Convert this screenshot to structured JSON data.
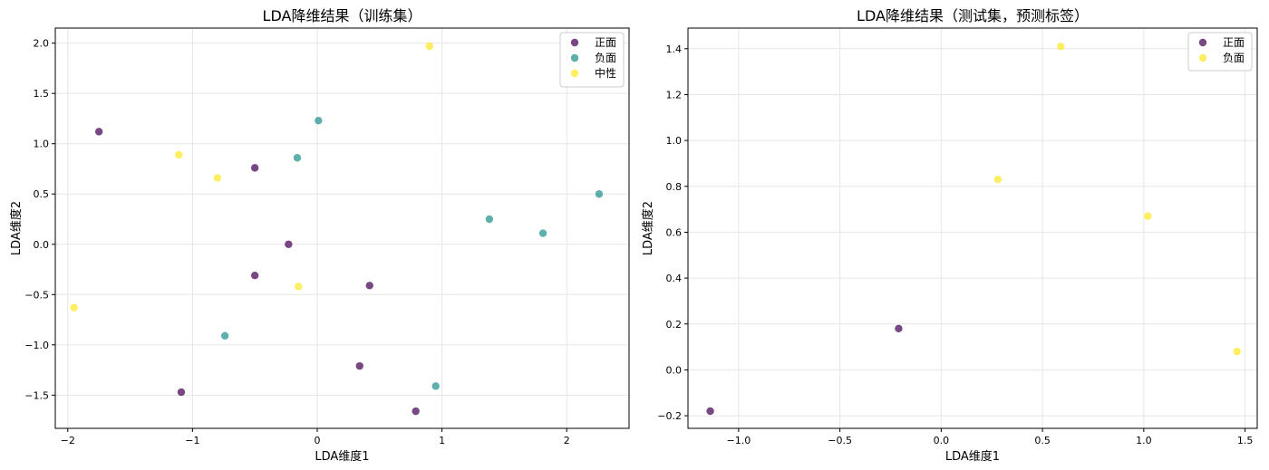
{
  "chart_data": [
    {
      "type": "scatter",
      "title": "LDA降维结果（训练集）",
      "xlabel": "LDA维度1",
      "ylabel": "LDA维度2",
      "xlim": [
        -2.1,
        2.5
      ],
      "ylim": [
        -1.83,
        2.15
      ],
      "xticks": [
        -2,
        -1,
        0,
        1,
        2
      ],
      "xtick_labels": [
        "−2",
        "−1",
        "0",
        "1",
        "2"
      ],
      "yticks": [
        -1.5,
        -1.0,
        -0.5,
        0.0,
        0.5,
        1.0,
        1.5,
        2.0
      ],
      "ytick_labels": [
        "−1.5",
        "−1.0",
        "−0.5",
        "0.0",
        "0.5",
        "1.0",
        "1.5",
        "2.0"
      ],
      "grid": true,
      "legend_position": "top-right",
      "series": [
        {
          "name": "正面",
          "color": "#440154",
          "points": [
            [
              -1.75,
              1.12
            ],
            [
              -0.5,
              0.76
            ],
            [
              -0.23,
              0.0
            ],
            [
              -0.5,
              -0.31
            ],
            [
              0.42,
              -0.41
            ],
            [
              0.34,
              -1.21
            ],
            [
              -1.09,
              -1.47
            ],
            [
              0.79,
              -1.66
            ]
          ]
        },
        {
          "name": "负面",
          "color": "#21918c",
          "points": [
            [
              0.01,
              1.23
            ],
            [
              -0.16,
              0.86
            ],
            [
              2.26,
              0.5
            ],
            [
              1.38,
              0.25
            ],
            [
              1.81,
              0.11
            ],
            [
              -0.74,
              -0.91
            ],
            [
              0.95,
              -1.41
            ]
          ]
        },
        {
          "name": "中性",
          "color": "#fde725",
          "points": [
            [
              0.9,
              1.97
            ],
            [
              -1.11,
              0.89
            ],
            [
              -0.8,
              0.66
            ],
            [
              -0.15,
              -0.42
            ],
            [
              -1.95,
              -0.63
            ]
          ]
        }
      ]
    },
    {
      "type": "scatter",
      "title": "LDA降维结果（测试集，预测标签）",
      "xlabel": "LDA维度1",
      "ylabel": "LDA维度2",
      "xlim": [
        -1.25,
        1.56
      ],
      "ylim": [
        -0.255,
        1.49
      ],
      "xticks": [
        -1.0,
        -0.5,
        0.0,
        0.5,
        1.0,
        1.5
      ],
      "xtick_labels": [
        "−1.0",
        "−0.5",
        "0.0",
        "0.5",
        "1.0",
        "1.5"
      ],
      "yticks": [
        -0.2,
        0.0,
        0.2,
        0.4,
        0.6,
        0.8,
        1.0,
        1.2,
        1.4
      ],
      "ytick_labels": [
        "−0.2",
        "0.0",
        "0.2",
        "0.4",
        "0.6",
        "0.8",
        "1.0",
        "1.2",
        "1.4"
      ],
      "grid": true,
      "legend_position": "top-right",
      "series": [
        {
          "name": "正面",
          "color": "#440154",
          "points": [
            [
              -1.14,
              -0.18
            ],
            [
              -0.21,
              0.18
            ]
          ]
        },
        {
          "name": "负面",
          "color": "#fde725",
          "points": [
            [
              0.59,
              1.41
            ],
            [
              0.28,
              0.83
            ],
            [
              1.02,
              0.67
            ],
            [
              1.46,
              0.08
            ]
          ]
        }
      ]
    }
  ]
}
